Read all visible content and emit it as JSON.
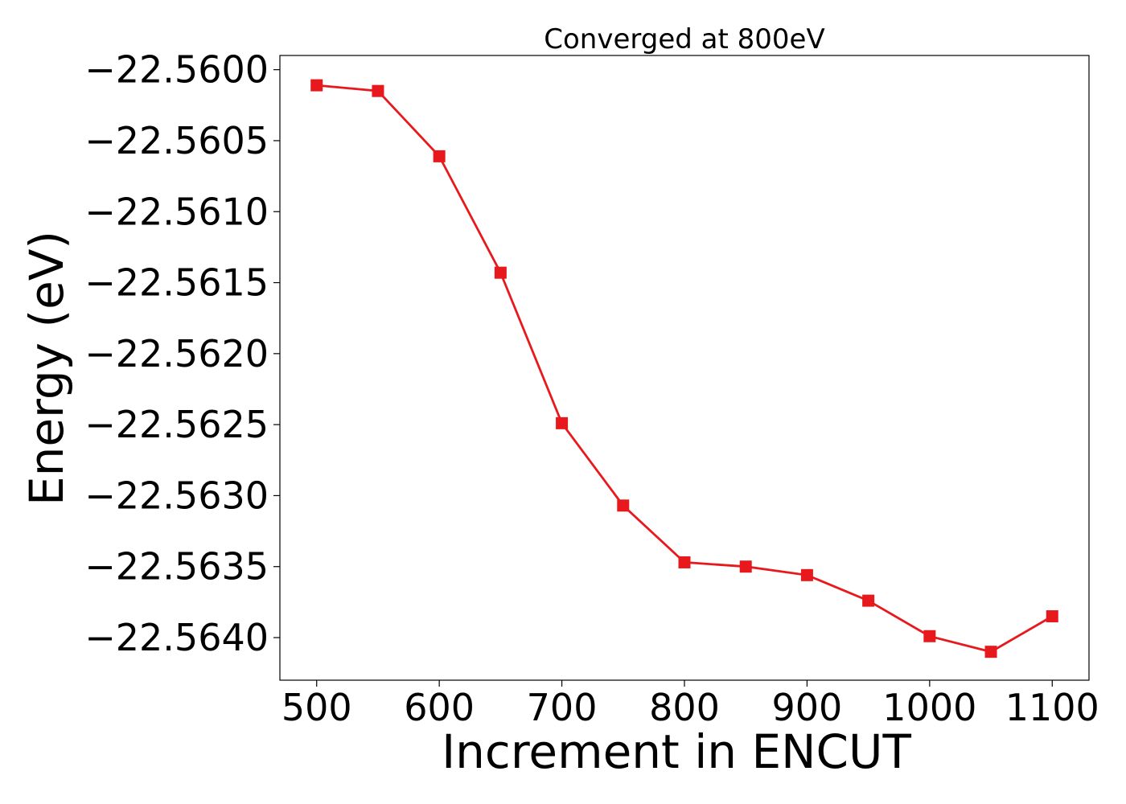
{
  "chart_data": {
    "type": "line",
    "title": "Converged at 800eV",
    "xlabel": "Increment in ENCUT",
    "ylabel": "Energy (eV)",
    "xlim": [
      470,
      1130
    ],
    "ylim": [
      -22.5643,
      -22.5599
    ],
    "xticks": [
      500,
      600,
      700,
      800,
      900,
      1000,
      1100
    ],
    "xtick_labels": [
      "500",
      "600",
      "700",
      "800",
      "900",
      "1000",
      "1100"
    ],
    "yticks": [
      -22.56,
      -22.5605,
      -22.561,
      -22.5615,
      -22.562,
      -22.5625,
      -22.563,
      -22.5635,
      -22.564
    ],
    "ytick_labels": [
      "−22.5600",
      "−22.5605",
      "−22.5610",
      "−22.5615",
      "−22.5620",
      "−22.5625",
      "−22.5630",
      "−22.5635",
      "−22.5640"
    ],
    "grid": false,
    "legend": "none",
    "series": [
      {
        "color": "#e8191c",
        "marker": "square",
        "x": [
          500,
          550,
          600,
          650,
          700,
          750,
          800,
          850,
          900,
          950,
          1000,
          1050,
          1100
        ],
        "y": [
          -22.56011,
          -22.56015,
          -22.56061,
          -22.56143,
          -22.56249,
          -22.56307,
          -22.56347,
          -22.5635,
          -22.56356,
          -22.56374,
          -22.56399,
          -22.5641,
          -22.56385
        ]
      }
    ]
  }
}
